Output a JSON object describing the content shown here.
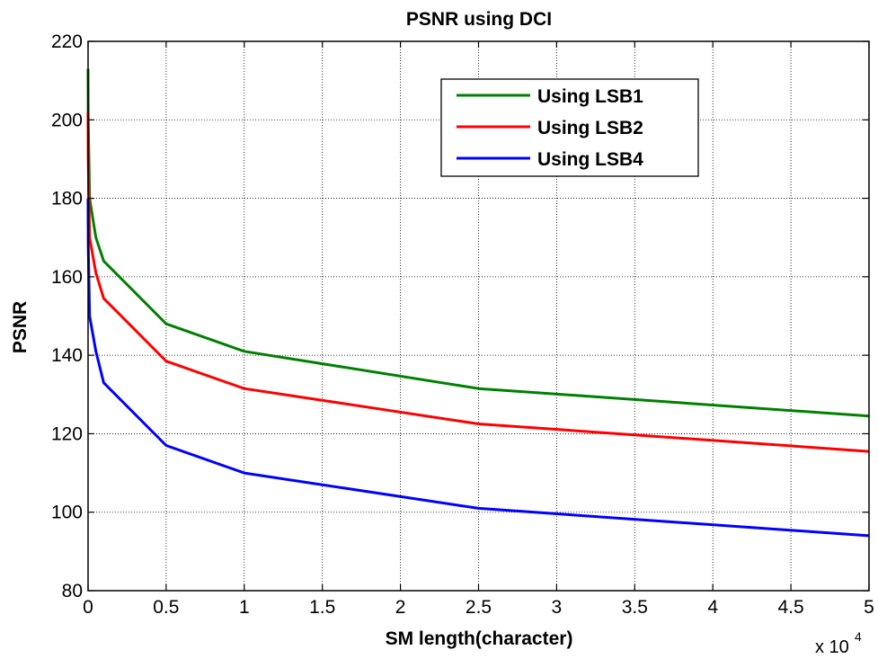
{
  "chart_data": {
    "type": "line",
    "title": "PSNR using DCI",
    "xlabel": "SM length(character)",
    "ylabel": "PSNR",
    "x_multiplier_base": "x 10",
    "x_multiplier_exponent": "4",
    "xlim": [
      0,
      50000
    ],
    "ylim": [
      80,
      220
    ],
    "x_ticks": [
      0,
      5000,
      10000,
      15000,
      20000,
      25000,
      30000,
      35000,
      40000,
      45000,
      50000
    ],
    "x_tick_labels": [
      "0",
      "0.5",
      "1",
      "1.5",
      "2",
      "2.5",
      "3",
      "3.5",
      "4",
      "4.5",
      "5"
    ],
    "y_ticks": [
      80,
      100,
      120,
      140,
      160,
      180,
      200,
      220
    ],
    "y_tick_labels": [
      "80",
      "100",
      "120",
      "140",
      "160",
      "180",
      "200",
      "220"
    ],
    "grid": true,
    "legend_position": "top-right",
    "x": [
      1,
      10,
      100,
      500,
      1000,
      5000,
      10000,
      25000,
      50000
    ],
    "series": [
      {
        "name": "Using LSB1",
        "color": "#008000",
        "values": [
          213,
          200,
          180,
          170,
          164,
          148,
          141,
          131.5,
          124.5
        ]
      },
      {
        "name": "Using LSB2",
        "color": "#ff0000",
        "values": [
          202,
          190,
          170,
          161,
          154.5,
          138.5,
          131.5,
          122.5,
          115.5
        ]
      },
      {
        "name": "Using LSB4",
        "color": "#0000ff",
        "values": [
          180,
          168,
          150,
          141,
          133,
          117,
          110,
          101,
          94
        ]
      }
    ]
  }
}
